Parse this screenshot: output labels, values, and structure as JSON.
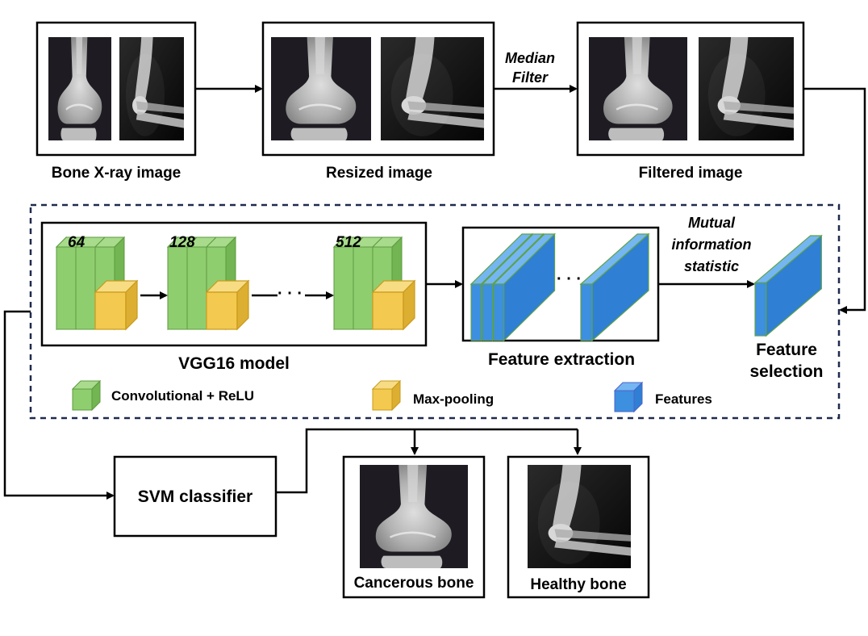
{
  "stages": {
    "input_label": "Bone X-ray image",
    "resized_label": "Resized image",
    "filtered_label": "Filtered image",
    "filter_arrow_line1": "Median",
    "filter_arrow_line2": "Filter"
  },
  "vgg": {
    "label": "VGG16 model",
    "block1_channels": "64",
    "block2_channels": "128",
    "block3_channels": "512"
  },
  "features": {
    "extraction_label": "Feature extraction",
    "mi_line1": "Mutual",
    "mi_line2": "information",
    "mi_line3": "statistic",
    "selection_line1": "Feature",
    "selection_line2": "selection"
  },
  "legend": {
    "conv_label": "Convolutional + ReLU",
    "pool_label": "Max-pooling",
    "features_label": "Features"
  },
  "classifier": {
    "label": "SVM classifier",
    "output1_label": "Cancerous bone",
    "output2_label": "Healthy bone"
  },
  "colors": {
    "conv": "#8fce6f",
    "pool": "#f3c94f",
    "feature": "#3d8fe0",
    "dashed_border": "#1f2a4d"
  },
  "icons": {
    "knee": "knee-xray-icon",
    "elbow": "elbow-xray-icon"
  }
}
